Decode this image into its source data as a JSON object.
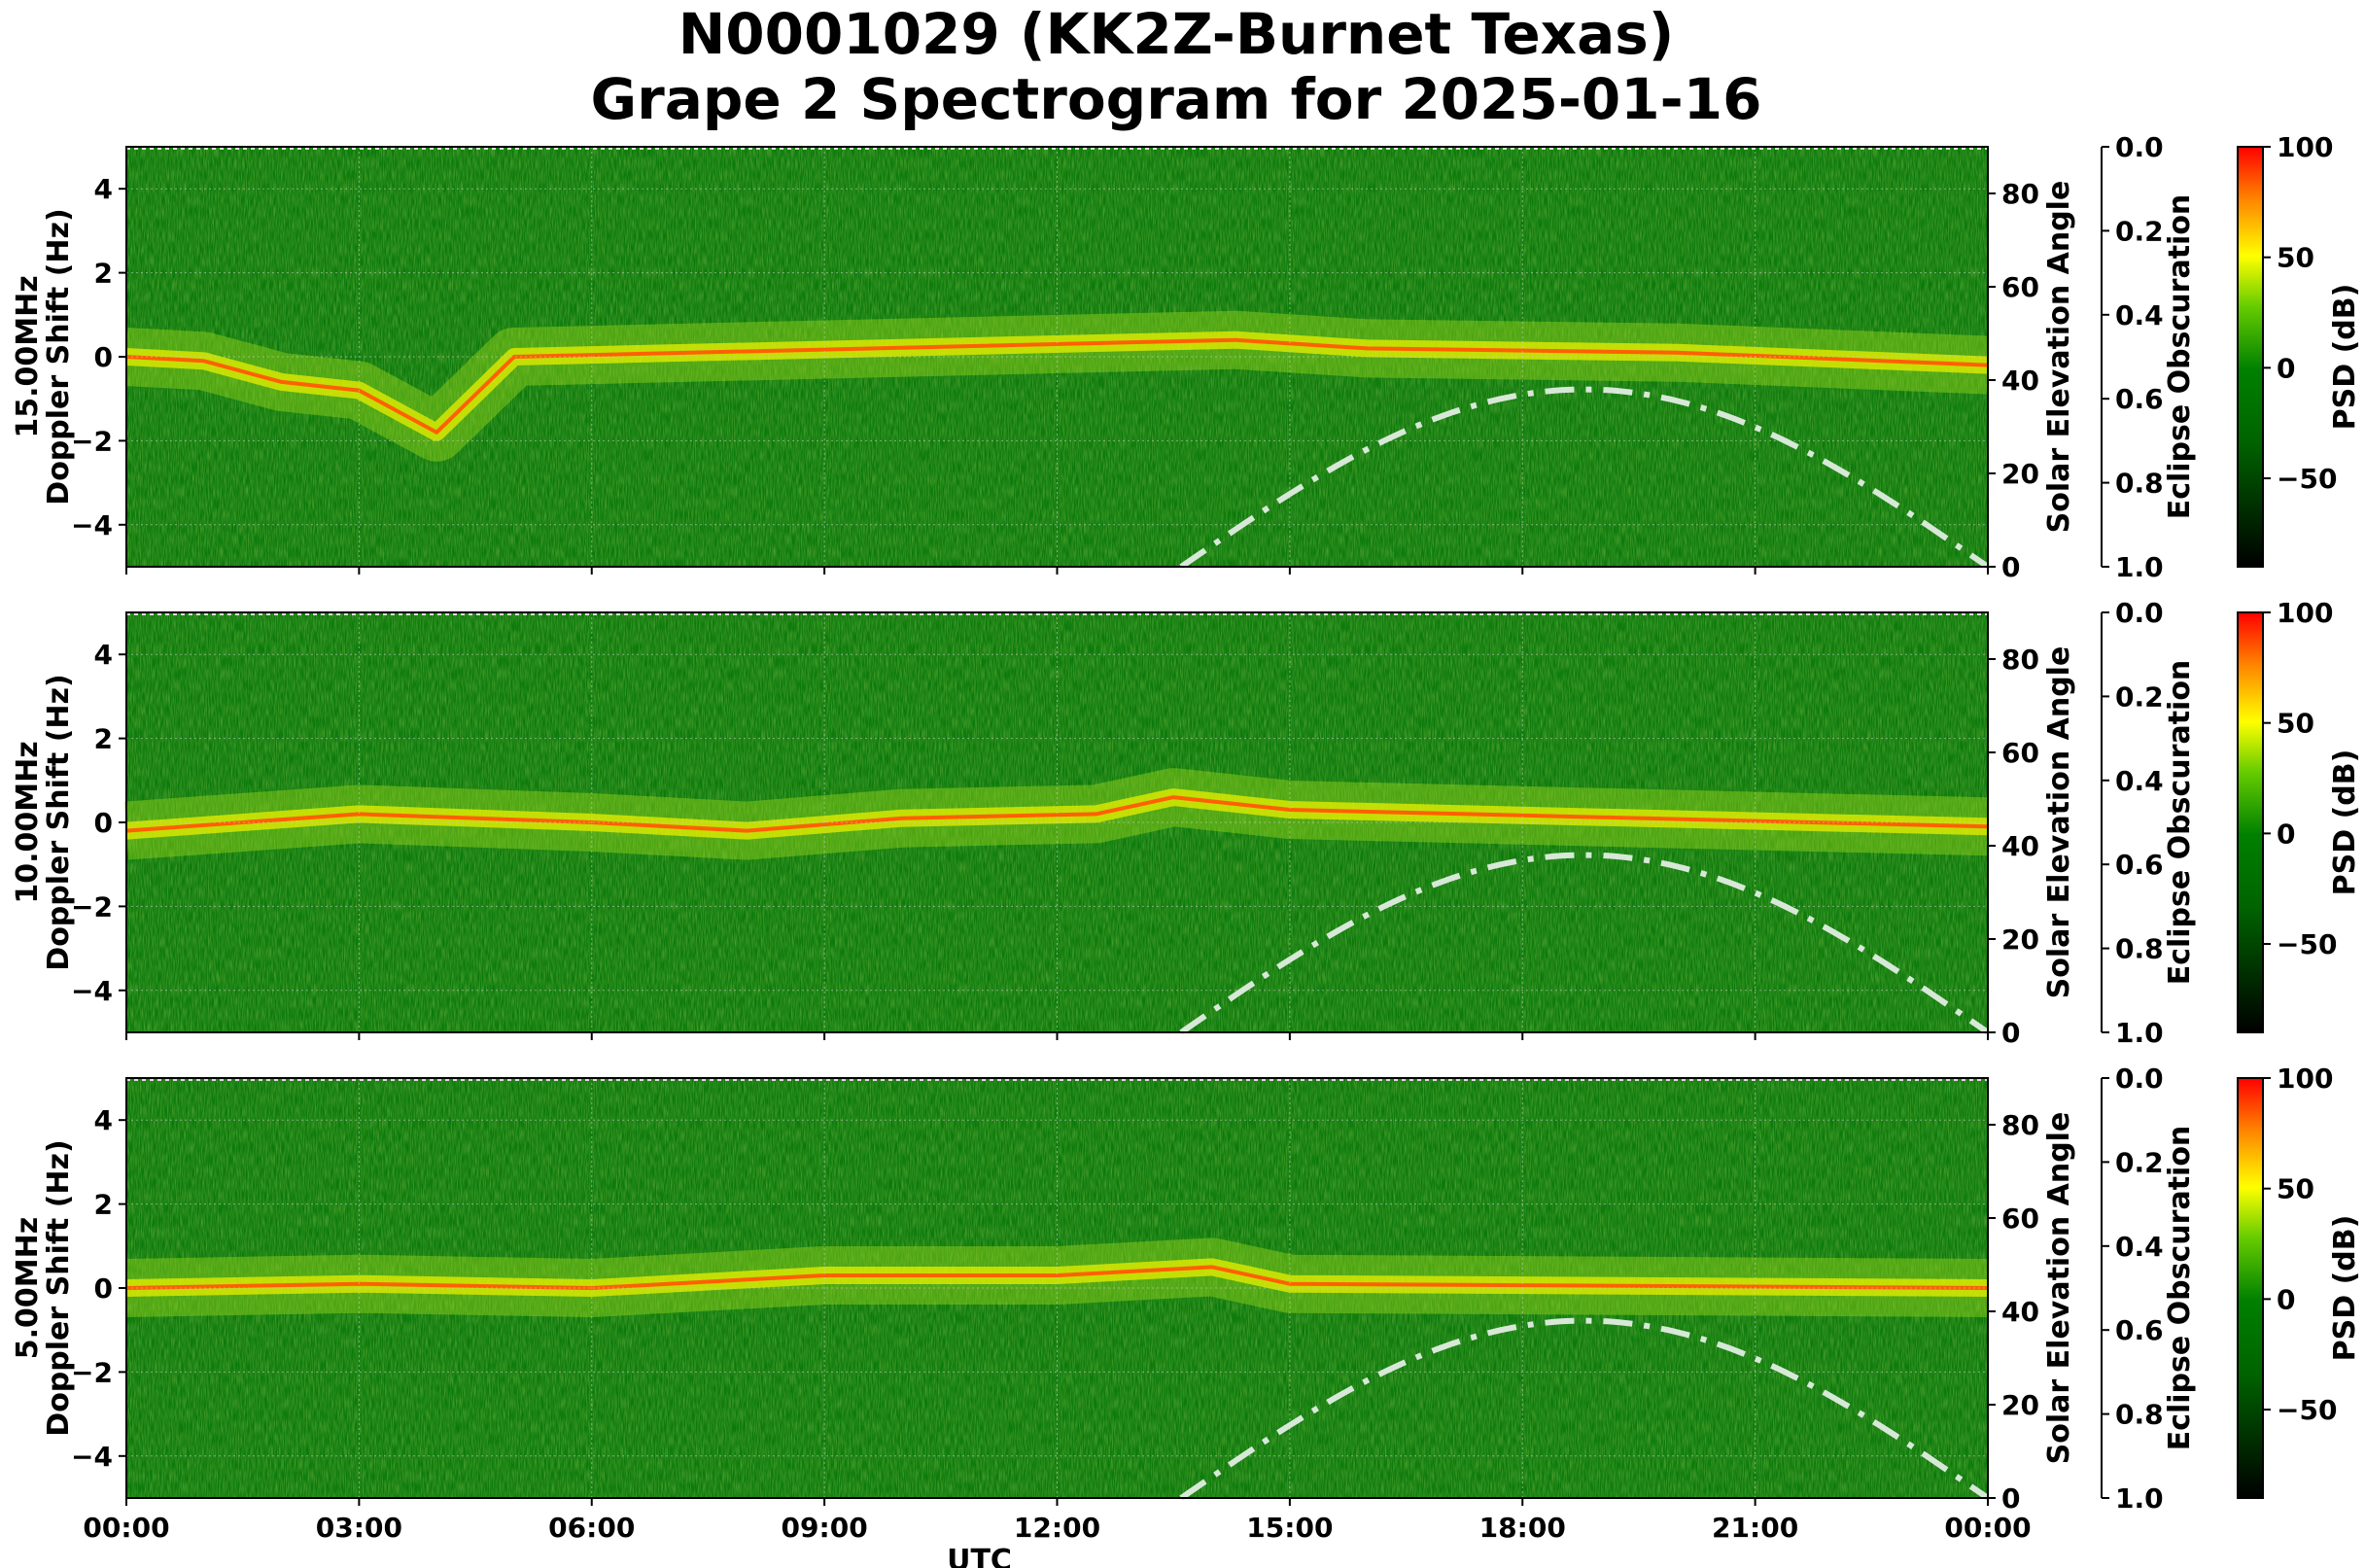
{
  "title_line1": "N0001029 (KK2Z-Burnet Texas)",
  "title_line2": "Grape 2 Spectrogram for 2025-01-16",
  "colors": {
    "psd_low": "#000000",
    "psd_mid": "#008000",
    "psd_high_yellow": "#ffff00",
    "psd_max": "#ff0000",
    "solar_curve": "#d8e8d8"
  },
  "chart_data": [
    {
      "type": "heatmap",
      "band": "15.00MHz",
      "ylabel": "Doppler Shift (Hz)",
      "ylabel_band": "15.00MHz",
      "ylim": [
        -5,
        5
      ],
      "yticks": [
        "4",
        "2",
        "0",
        "−2",
        "−4"
      ],
      "xlim_hours": [
        0,
        24
      ],
      "right_axis_label": "Solar Elevation Angle",
      "right_ylim": [
        0,
        90
      ],
      "right_yticks": [
        "0",
        "20",
        "40",
        "60",
        "80"
      ],
      "obscuration_label": "Eclipse Obscuration",
      "obscuration_ylim": [
        1.0,
        0.0
      ],
      "obscuration_ticks": [
        "0.0",
        "0.2",
        "0.4",
        "0.6",
        "0.8",
        "1.0"
      ],
      "colorbar_label": "PSD (dB)",
      "colorbar_ticks": [
        "100",
        "50",
        "0",
        "−50"
      ],
      "colorbar_range": [
        -90,
        100
      ],
      "solar_elevation_peak": 38,
      "solar_elevation_peak_utc": 18.8,
      "solar_rise_utc": 13.6,
      "solar_set_utc": 24.0,
      "signal_trace_hz": [
        [
          0,
          0
        ],
        [
          1,
          -0.1
        ],
        [
          2,
          -0.6
        ],
        [
          3,
          -0.8
        ],
        [
          4,
          -1.8
        ],
        [
          5,
          0
        ],
        [
          14.3,
          0.4
        ],
        [
          16,
          0.2
        ],
        [
          20,
          0.1
        ],
        [
          24,
          -0.2
        ]
      ]
    },
    {
      "type": "heatmap",
      "band": "10.00MHz",
      "ylabel": "Doppler Shift (Hz)",
      "ylabel_band": "10.00MHz",
      "ylim": [
        -5,
        5
      ],
      "yticks": [
        "4",
        "2",
        "0",
        "−2",
        "−4"
      ],
      "xlim_hours": [
        0,
        24
      ],
      "right_axis_label": "Solar Elevation Angle",
      "right_ylim": [
        0,
        90
      ],
      "right_yticks": [
        "0",
        "20",
        "40",
        "60",
        "80"
      ],
      "obscuration_label": "Eclipse Obscuration",
      "obscuration_ylim": [
        1.0,
        0.0
      ],
      "obscuration_ticks": [
        "0.0",
        "0.2",
        "0.4",
        "0.6",
        "0.8",
        "1.0"
      ],
      "colorbar_label": "PSD (dB)",
      "colorbar_ticks": [
        "100",
        "50",
        "0",
        "−50"
      ],
      "colorbar_range": [
        -90,
        100
      ],
      "solar_elevation_peak": 38,
      "solar_elevation_peak_utc": 18.8,
      "solar_rise_utc": 13.6,
      "solar_set_utc": 24.0,
      "signal_trace_hz": [
        [
          0,
          -0.2
        ],
        [
          3,
          0.2
        ],
        [
          6,
          0
        ],
        [
          8,
          -0.2
        ],
        [
          10,
          0.1
        ],
        [
          12.5,
          0.2
        ],
        [
          13.5,
          0.6
        ],
        [
          15,
          0.3
        ],
        [
          24,
          -0.1
        ]
      ]
    },
    {
      "type": "heatmap",
      "band": "5.00MHz",
      "ylabel": "Doppler Shift (Hz)",
      "ylabel_band": "5.00MHz",
      "ylim": [
        -5,
        5
      ],
      "yticks": [
        "4",
        "2",
        "0",
        "−2",
        "−4"
      ],
      "xlim_hours": [
        0,
        24
      ],
      "xticks": [
        "00:00",
        "03:00",
        "06:00",
        "09:00",
        "12:00",
        "15:00",
        "18:00",
        "21:00",
        "00:00"
      ],
      "xlabel": "UTC",
      "right_axis_label": "Solar Elevation Angle",
      "right_ylim": [
        0,
        90
      ],
      "right_yticks": [
        "0",
        "20",
        "40",
        "60",
        "80"
      ],
      "obscuration_label": "Eclipse Obscuration",
      "obscuration_ylim": [
        1.0,
        0.0
      ],
      "obscuration_ticks": [
        "0.0",
        "0.2",
        "0.4",
        "0.6",
        "0.8",
        "1.0"
      ],
      "colorbar_label": "PSD (dB)",
      "colorbar_ticks": [
        "100",
        "50",
        "0",
        "−50"
      ],
      "colorbar_range": [
        -90,
        100
      ],
      "solar_elevation_peak": 38,
      "solar_elevation_peak_utc": 18.8,
      "solar_rise_utc": 13.6,
      "solar_set_utc": 24.0,
      "signal_trace_hz": [
        [
          0,
          0
        ],
        [
          3,
          0.1
        ],
        [
          6,
          0
        ],
        [
          9,
          0.3
        ],
        [
          12,
          0.3
        ],
        [
          14,
          0.5
        ],
        [
          15,
          0.1
        ],
        [
          24,
          0
        ]
      ]
    }
  ]
}
